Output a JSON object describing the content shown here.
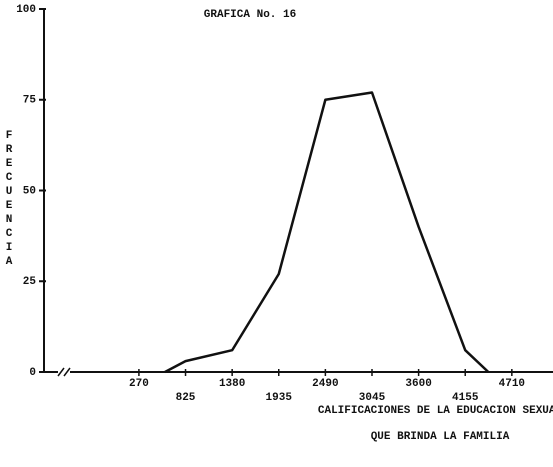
{
  "chart_data": {
    "type": "line",
    "title": "GRAFICA No. 16",
    "y_label": "FRECUENCIA",
    "x_label": [
      "CALIFICACIONES DE LA EDUCACION SEXUAL",
      "QUE BRINDA LA FAMILIA"
    ],
    "x": [
      580,
      825,
      1380,
      1935,
      2490,
      3045,
      3600,
      4155,
      4430
    ],
    "series": [
      {
        "name": "Frecuencia",
        "color": "#111111",
        "values": [
          0,
          3,
          6,
          27,
          75,
          77,
          40,
          6,
          0
        ]
      }
    ],
    "xlim": [
      -860,
      5200
    ],
    "xticks": [
      270,
      825,
      1380,
      1935,
      2490,
      3045,
      3600,
      4155,
      4710
    ],
    "ylim": [
      0,
      100
    ],
    "yticks": [
      0,
      25,
      50,
      75,
      100
    ]
  }
}
